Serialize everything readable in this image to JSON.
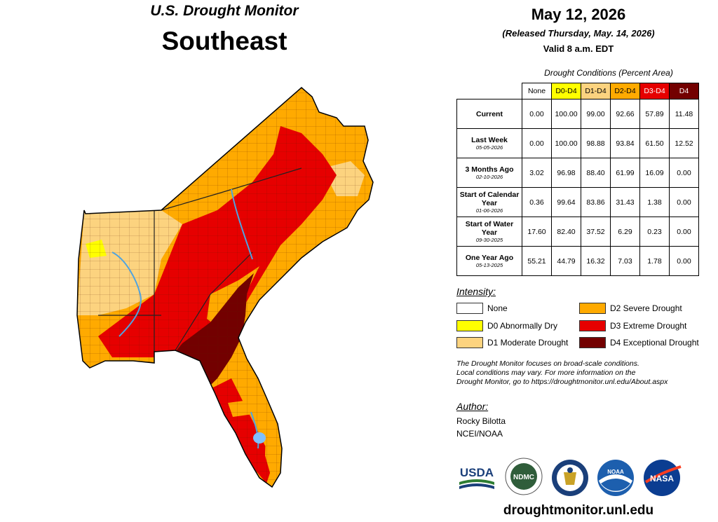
{
  "header": {
    "title_line1": "U.S. Drought Monitor",
    "title_line2": "Southeast",
    "date": "May 12, 2026",
    "released": "(Released Thursday, May. 14, 2026)",
    "valid": "Valid 8 a.m. EDT"
  },
  "table": {
    "caption": "Drought Conditions (Percent Area)",
    "columns": [
      {
        "label": "None",
        "color": "#ffffff"
      },
      {
        "label": "D0-D4",
        "color": "#ffff00"
      },
      {
        "label": "D1-D4",
        "color": "#fcd37f"
      },
      {
        "label": "D2-D4",
        "color": "#ffaa00"
      },
      {
        "label": "D3-D4",
        "color": "#e60000",
        "text_color": "#ffffff"
      },
      {
        "label": "D4",
        "color": "#730000",
        "text_color": "#ffffff"
      }
    ],
    "rows": [
      {
        "label": "Current",
        "date": "",
        "values": [
          "0.00",
          "100.00",
          "99.00",
          "92.66",
          "57.89",
          "11.48"
        ]
      },
      {
        "label": "Last Week",
        "date": "05-05-2026",
        "values": [
          "0.00",
          "100.00",
          "98.88",
          "93.84",
          "61.50",
          "12.52"
        ]
      },
      {
        "label": "3 Months Ago",
        "date": "02-10-2026",
        "values": [
          "3.02",
          "96.98",
          "88.40",
          "61.99",
          "16.09",
          "0.00"
        ]
      },
      {
        "label": "Start of Calendar Year",
        "date": "01-06-2026",
        "values": [
          "0.36",
          "99.64",
          "83.86",
          "31.43",
          "1.38",
          "0.00"
        ]
      },
      {
        "label": "Start of Water Year",
        "date": "09-30-2025",
        "values": [
          "17.60",
          "82.40",
          "37.52",
          "6.29",
          "0.23",
          "0.00"
        ]
      },
      {
        "label": "One Year Ago",
        "date": "05-13-2025",
        "values": [
          "55.21",
          "44.79",
          "16.32",
          "7.03",
          "1.78",
          "0.00"
        ]
      }
    ]
  },
  "legend": {
    "heading": "Intensity:",
    "items": [
      {
        "label": "None",
        "color": "#ffffff"
      },
      {
        "label": "D0 Abnormally Dry",
        "color": "#ffff00"
      },
      {
        "label": "D1 Moderate Drought",
        "color": "#fcd37f"
      },
      {
        "label": "D2 Severe Drought",
        "color": "#ffaa00"
      },
      {
        "label": "D3 Extreme Drought",
        "color": "#e60000"
      },
      {
        "label": "D4 Exceptional Drought",
        "color": "#730000"
      }
    ]
  },
  "disclaimer": {
    "line1": "The Drought Monitor focuses on broad-scale conditions.",
    "line2": "Local conditions may vary. For more information on the",
    "line3": "Drought Monitor, go to https://droughtmonitor.unl.edu/About.aspx"
  },
  "author": {
    "heading": "Author:",
    "name": "Rocky Bilotta",
    "org": "NCEI/NOAA"
  },
  "logos": {
    "usda": "USDA",
    "ndmc": "NDMC",
    "noaa": "NOAA",
    "nasa": "NASA"
  },
  "footer": {
    "url": "droughtmonitor.unl.edu"
  }
}
